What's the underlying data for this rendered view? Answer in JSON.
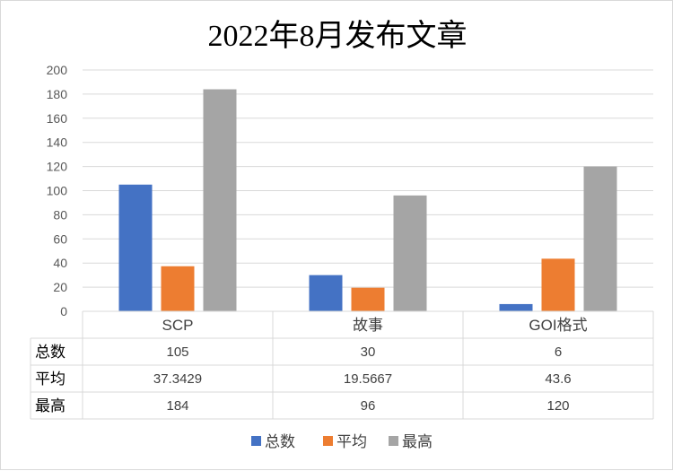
{
  "chart_data": {
    "type": "bar",
    "title": "2022年8月发布文章",
    "categories": [
      "SCP",
      "故事",
      "GOI格式"
    ],
    "series": [
      {
        "name": "总数",
        "values": [
          105,
          30,
          6
        ],
        "labels": [
          "105",
          "30",
          "6"
        ],
        "color": "#4472c4"
      },
      {
        "name": "平均",
        "values": [
          37.3429,
          19.5667,
          43.6
        ],
        "labels": [
          "37.3429",
          "19.5667",
          "43.6"
        ],
        "color": "#ed7d31"
      },
      {
        "name": "最高",
        "values": [
          184,
          96,
          120
        ],
        "labels": [
          "184",
          "96",
          "120"
        ],
        "color": "#a5a5a5"
      }
    ],
    "ylim": [
      0,
      200
    ],
    "yticks": [
      "0",
      "20",
      "40",
      "60",
      "80",
      "100",
      "120",
      "140",
      "160",
      "180",
      "200"
    ],
    "grid": true,
    "legend": "bottom",
    "data_table": true
  }
}
